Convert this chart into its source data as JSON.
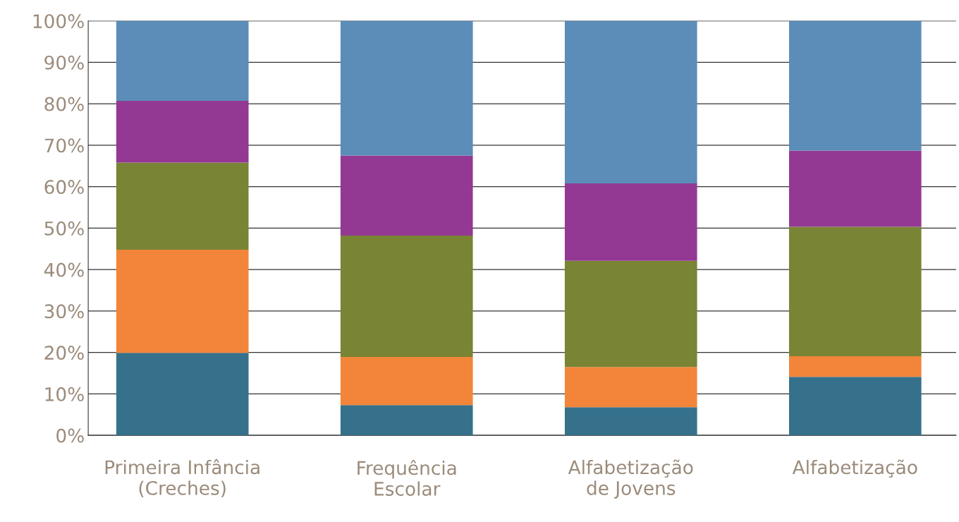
{
  "chart_data": {
    "type": "bar",
    "stacked": true,
    "categories": [
      "Primeira Infância\n(Creches)",
      "Frequência\nEscolar",
      "Alfabetização\nde Jovens",
      "Alfabetização"
    ],
    "series": [
      {
        "color": "#36718b",
        "values": [
          19.9,
          7.3,
          6.8,
          14.1
        ]
      },
      {
        "color": "#f28539",
        "values": [
          24.9,
          11.6,
          9.7,
          5.0
        ]
      },
      {
        "color": "#798434",
        "values": [
          21.0,
          29.3,
          25.6,
          31.2
        ]
      },
      {
        "color": "#933993",
        "values": [
          14.9,
          19.3,
          18.7,
          18.4
        ]
      },
      {
        "color": "#5b8db8",
        "values": [
          19.3,
          32.5,
          39.2,
          31.3
        ]
      }
    ],
    "ylim": [
      0,
      100
    ],
    "yticks": [
      {
        "value": 0,
        "label": "0%"
      },
      {
        "value": 10,
        "label": "10%"
      },
      {
        "value": 20,
        "label": "20%"
      },
      {
        "value": 30,
        "label": "30%"
      },
      {
        "value": 40,
        "label": "40%"
      },
      {
        "value": 50,
        "label": "50%"
      },
      {
        "value": 60,
        "label": "60%"
      },
      {
        "value": 70,
        "label": "70%"
      },
      {
        "value": 80,
        "label": "80%"
      },
      {
        "value": 90,
        "label": "90%"
      },
      {
        "value": 100,
        "label": "100%"
      }
    ],
    "grid": "y"
  }
}
